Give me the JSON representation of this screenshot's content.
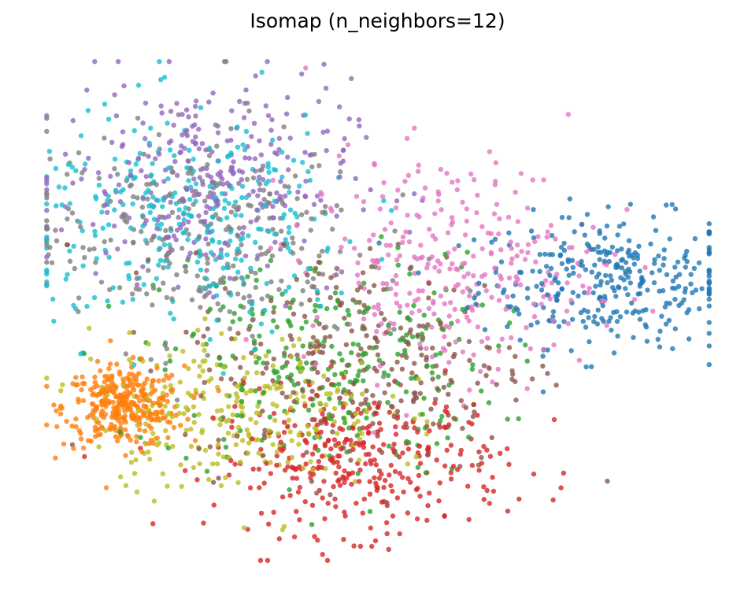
{
  "chart_data": {
    "type": "scatter",
    "title": "Isomap (n_neighbors=12)",
    "axes_visible": false,
    "grid": false,
    "legend": "none",
    "xlim": [
      -1.0,
      1.0
    ],
    "ylim": [
      -1.0,
      1.0
    ],
    "marker_alpha": 0.8,
    "clusters": [
      {
        "color": "#1f77b4",
        "center": [
          0.7,
          0.12
        ],
        "spread": [
          0.2,
          0.13
        ],
        "count": 320
      },
      {
        "color": "#ff7f0e",
        "center": [
          -0.76,
          -0.38
        ],
        "spread": [
          0.09,
          0.08
        ],
        "count": 330
      },
      {
        "color": "#2ca02c",
        "center": [
          -0.15,
          -0.22
        ],
        "spread": [
          0.25,
          0.22
        ],
        "count": 280
      },
      {
        "color": "#d62728",
        "center": [
          -0.05,
          -0.6
        ],
        "spread": [
          0.22,
          0.14
        ],
        "count": 330
      },
      {
        "color": "#9467bd",
        "center": [
          -0.52,
          0.52
        ],
        "spread": [
          0.22,
          0.2
        ],
        "count": 300
      },
      {
        "color": "#8c564b",
        "center": [
          -0.05,
          -0.2
        ],
        "spread": [
          0.26,
          0.22
        ],
        "count": 280
      },
      {
        "color": "#e377c2",
        "center": [
          0.22,
          0.18
        ],
        "spread": [
          0.22,
          0.22
        ],
        "count": 300
      },
      {
        "color": "#7f7f7f",
        "center": [
          -0.55,
          0.3
        ],
        "spread": [
          0.25,
          0.22
        ],
        "count": 300
      },
      {
        "color": "#bcbd22",
        "center": [
          -0.42,
          -0.4
        ],
        "spread": [
          0.22,
          0.15
        ],
        "count": 280
      },
      {
        "color": "#17becf",
        "center": [
          -0.55,
          0.35
        ],
        "spread": [
          0.25,
          0.22
        ],
        "count": 300
      }
    ]
  }
}
